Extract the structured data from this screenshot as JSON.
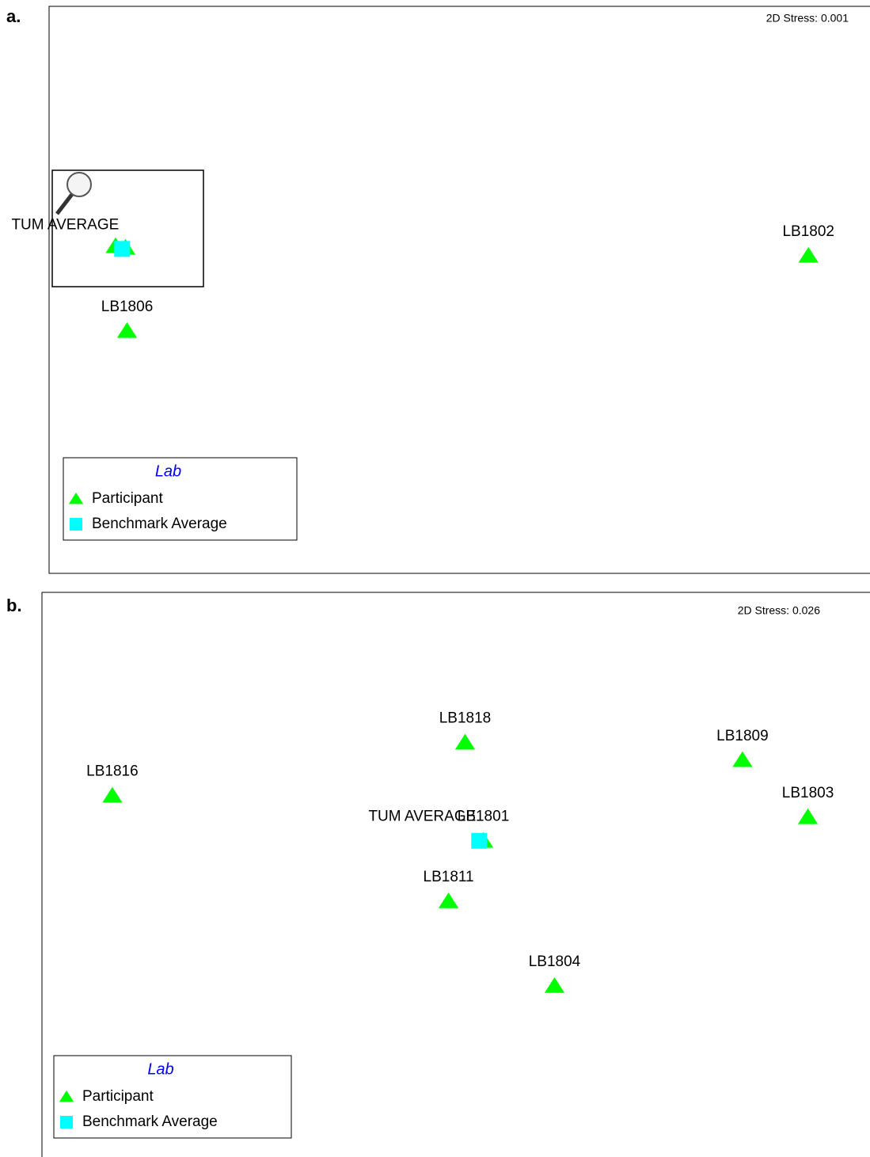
{
  "chart_data": [
    {
      "type": "scatter",
      "panel": "a.",
      "annotation": "2D Stress: 0.001",
      "legend_title": "Lab",
      "xlim": [
        0,
        100
      ],
      "ylim": [
        0,
        100
      ],
      "series": [
        {
          "name": "Participant",
          "color": "#00ff00",
          "marker": "triangle",
          "x": [
            92.5,
            9.5,
            8.1,
            9.3
          ],
          "y": [
            55.9,
            42.6,
            57.6,
            57.3
          ],
          "labels": [
            "LB1802",
            "LB1806",
            null,
            null
          ]
        },
        {
          "name": "Benchmark Average",
          "color": "#00ffff",
          "marker": "square",
          "x": [
            8.9
          ],
          "y": [
            57.1
          ],
          "labels": [
            "TUM AVERAGE"
          ]
        }
      ]
    },
    {
      "type": "scatter",
      "panel": "b.",
      "annotation": "2D Stress: 0.026",
      "legend_title": "Lab",
      "xlim": [
        0,
        100
      ],
      "ylim": [
        0,
        100
      ],
      "series": [
        {
          "name": "Participant",
          "color": "#00ff00",
          "marker": "triangle",
          "x": [
            51.1,
            84.6,
            8.5,
            92.5,
            53.3,
            49.1,
            61.9
          ],
          "y": [
            73.4,
            70.3,
            64.0,
            60.2,
            56.0,
            45.3,
            30.3
          ],
          "labels": [
            "LB1818",
            "LB1809",
            "LB1816",
            "LB1803",
            "LB1801",
            "LB1811",
            "LB1804"
          ]
        },
        {
          "name": "Benchmark Average",
          "color": "#00ffff",
          "marker": "square",
          "x": [
            52.8
          ],
          "y": [
            56.0
          ],
          "labels": [
            "TUM AVERAGE"
          ]
        }
      ]
    }
  ]
}
